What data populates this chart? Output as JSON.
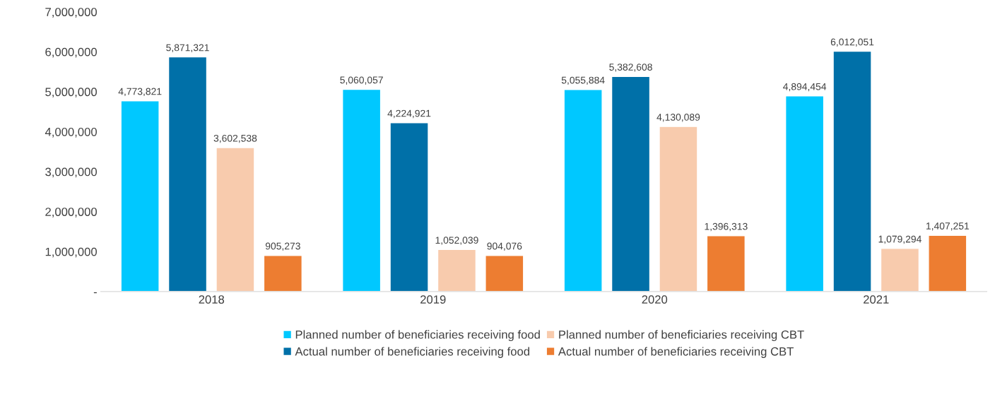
{
  "chart_data": {
    "type": "bar",
    "categories": [
      "2018",
      "2019",
      "2020",
      "2021"
    ],
    "series": [
      {
        "name": "Planned number of beneficiaries receiving food",
        "color": "#00c8ff",
        "values": [
          4773821,
          5060057,
          5055884,
          4894454
        ],
        "value_labels": [
          "4,773,821",
          "5,060,057",
          "5,055,884",
          "4,894,454"
        ]
      },
      {
        "name": "Actual number of beneficiaries receiving food",
        "color": "#0070a8",
        "values": [
          5871321,
          4224921,
          5382608,
          6012051
        ],
        "value_labels": [
          "5,871,321",
          "4,224,921",
          "5,382,608",
          "6,012,051"
        ]
      },
      {
        "name": "Planned number of beneficiaries receiving CBT",
        "color": "#f8cbad",
        "values": [
          3602538,
          1052039,
          4130089,
          1079294
        ],
        "value_labels": [
          "3,602,538",
          "1,052,039",
          "4,130,089",
          "1,079,294"
        ]
      },
      {
        "name": "Actual number of beneficiaries receiving CBT",
        "color": "#ed7d31",
        "values": [
          905273,
          904076,
          1396313,
          1407251
        ],
        "value_labels": [
          "905,273",
          "904,076",
          "1,396,313",
          "1,407,251"
        ]
      }
    ],
    "ylim": [
      0,
      7000000
    ],
    "yticks": [
      {
        "value": 0,
        "label": "-"
      },
      {
        "value": 1000000,
        "label": "1,000,000"
      },
      {
        "value": 2000000,
        "label": "2,000,000"
      },
      {
        "value": 3000000,
        "label": "3,000,000"
      },
      {
        "value": 4000000,
        "label": "4,000,000"
      },
      {
        "value": 5000000,
        "label": "5,000,000"
      },
      {
        "value": 6000000,
        "label": "6,000,000"
      },
      {
        "value": 7000000,
        "label": "7,000,000"
      }
    ],
    "grid": false,
    "legend": "bottom"
  }
}
